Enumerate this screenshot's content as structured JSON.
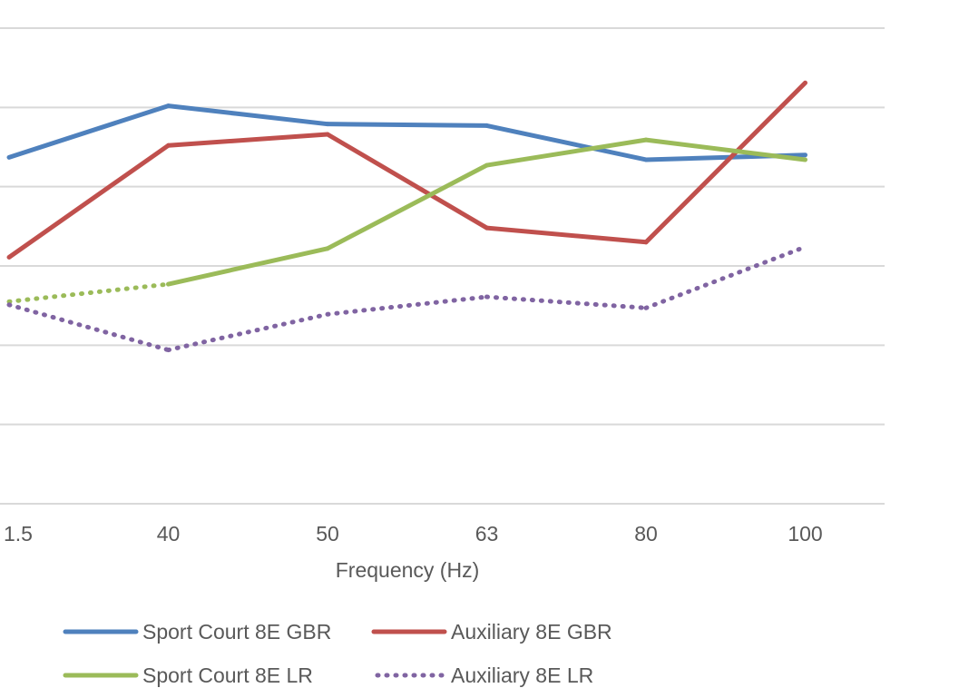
{
  "chart_data": {
    "type": "line",
    "title": "",
    "xlabel": "Frequency (Hz)",
    "ylabel": "",
    "categories": [
      "1.5",
      "40",
      "50",
      "63",
      "80",
      "100"
    ],
    "ylim": [
      0,
      6
    ],
    "grid": true,
    "legend_position": "bottom",
    "series": [
      {
        "name": "Sport Court 8E GBR",
        "color": "#4f81bd",
        "style": "solid",
        "values": [
          4.37,
          5.02,
          4.79,
          4.77,
          4.34,
          4.4
        ]
      },
      {
        "name": "Auxiliary 8E GBR",
        "color": "#c0504d",
        "style": "solid",
        "values": [
          3.11,
          4.52,
          4.66,
          3.48,
          3.3,
          5.31
        ]
      },
      {
        "name": "Sport Court 8E LR",
        "color": "#9bbb59",
        "style": "solid",
        "values": [
          2.55,
          2.77,
          3.22,
          4.27,
          4.59,
          4.34
        ]
      },
      {
        "name": "Auxiliary 8E LR",
        "color": "#8064a2",
        "style": "dotted",
        "values": [
          2.51,
          1.94,
          2.39,
          2.61,
          2.47,
          3.24
        ]
      }
    ]
  }
}
